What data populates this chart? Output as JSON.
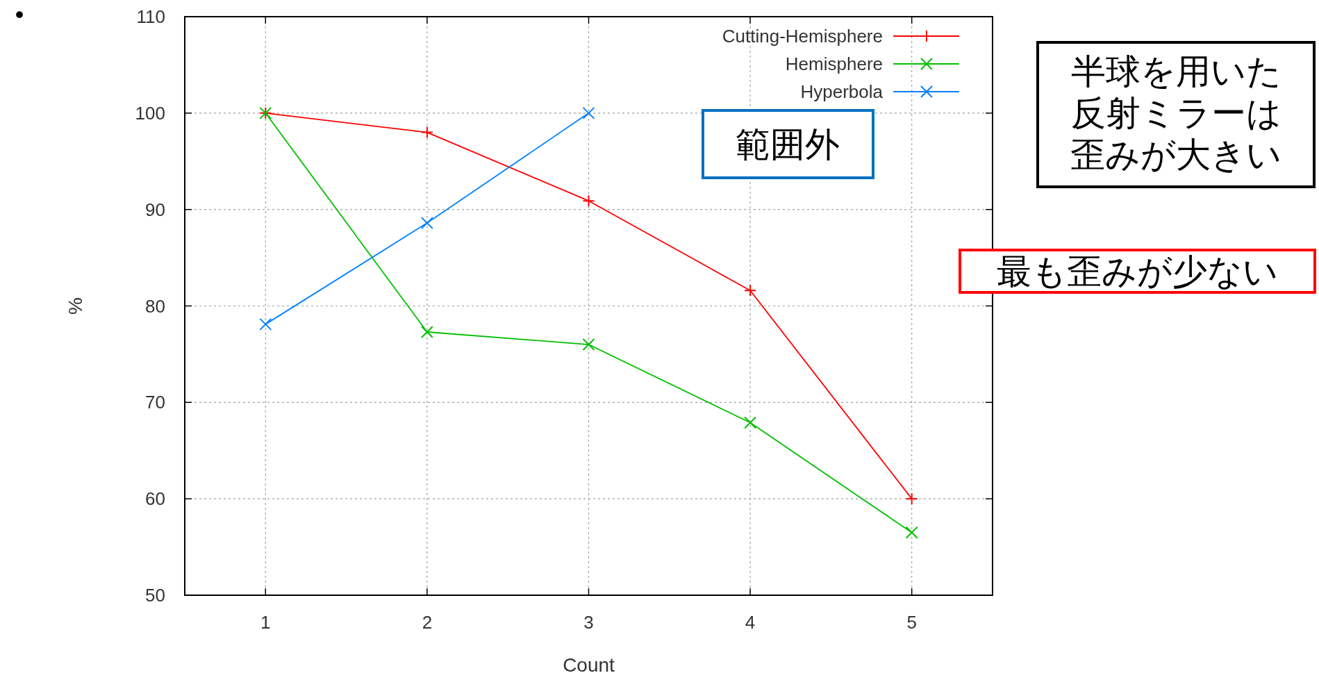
{
  "chart_data": {
    "type": "line",
    "xlabel": "Count",
    "ylabel": "%",
    "x": [
      1,
      2,
      3,
      4,
      5
    ],
    "series": [
      {
        "name": "Cutting-Hemisphere",
        "color": "#ff0000",
        "marker": "plus",
        "values": [
          100,
          98,
          90.9,
          81.6,
          60
        ]
      },
      {
        "name": "Hemisphere",
        "color": "#00c000",
        "marker": "cross",
        "values": [
          100,
          77.3,
          76,
          67.9,
          56.5
        ]
      },
      {
        "name": "Hyperbola",
        "color": "#0080ff",
        "marker": "cross",
        "values": [
          78.1,
          88.6,
          100,
          null,
          null
        ]
      }
    ],
    "xlim": [
      0.5,
      5.5
    ],
    "xticks": [
      1,
      2,
      3,
      4,
      5
    ],
    "ylim": [
      50,
      110
    ],
    "yticks": [
      50,
      60,
      70,
      80,
      90,
      100,
      110
    ],
    "grid": true,
    "legend": "top right",
    "annotations": [
      "•",
      "範囲外",
      "半球を用いた反射ミラーは歪みが大きい",
      "最も歪みが少ない"
    ]
  }
}
